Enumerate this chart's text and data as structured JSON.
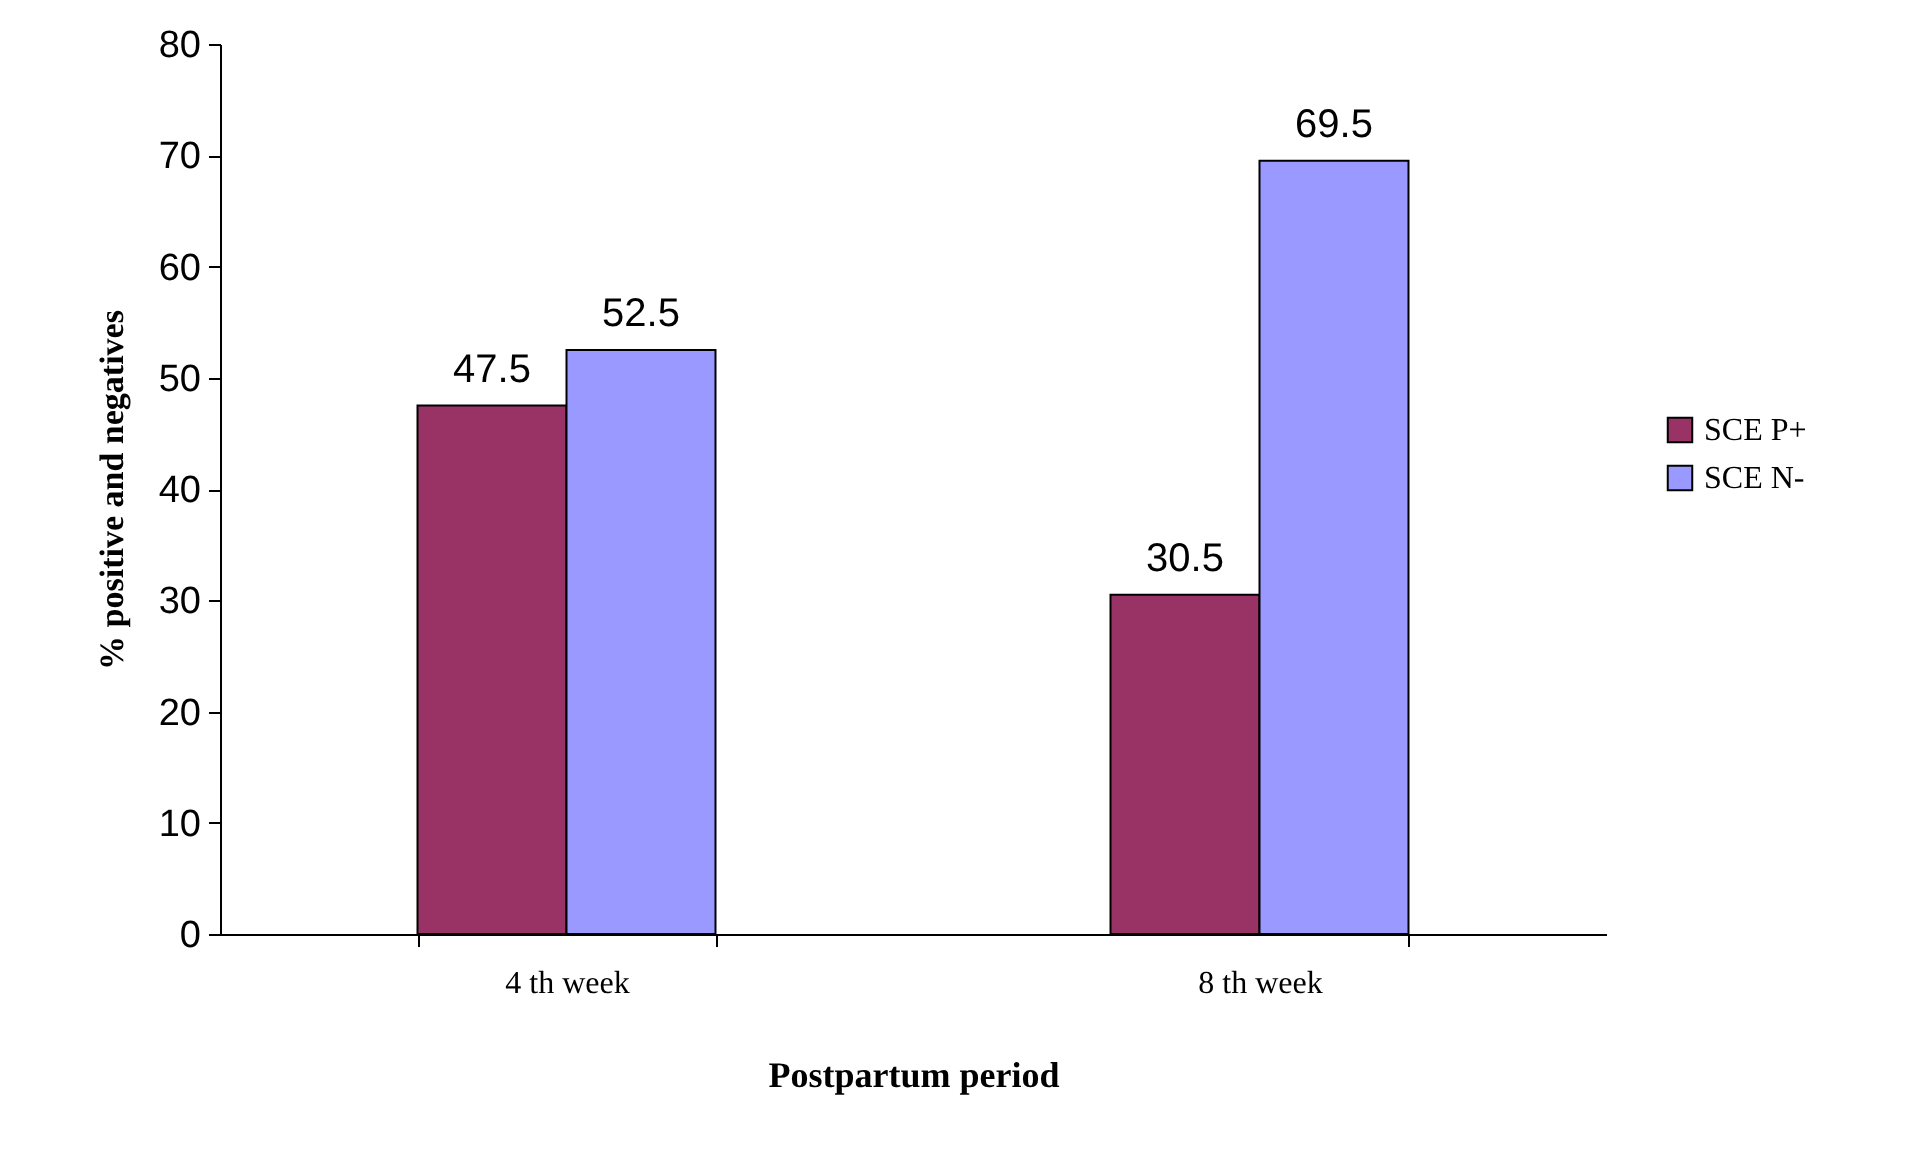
{
  "chart_data": {
    "type": "bar",
    "xlabel": "Postpartum period",
    "ylabel": "% positive and negatives",
    "categories": [
      "4 th week",
      "8 th week"
    ],
    "series": [
      {
        "name": "SCE P+",
        "color": "#993366",
        "values": [
          47.5,
          30.5
        ]
      },
      {
        "name": "SCE N-",
        "color": "#9999ff",
        "values": [
          52.5,
          69.5
        ]
      }
    ],
    "ylim": [
      0,
      80
    ],
    "yticks": [
      0,
      10,
      20,
      30,
      40,
      50,
      60,
      70,
      80
    ],
    "data_labels": true,
    "legend": "right",
    "grid": false
  }
}
